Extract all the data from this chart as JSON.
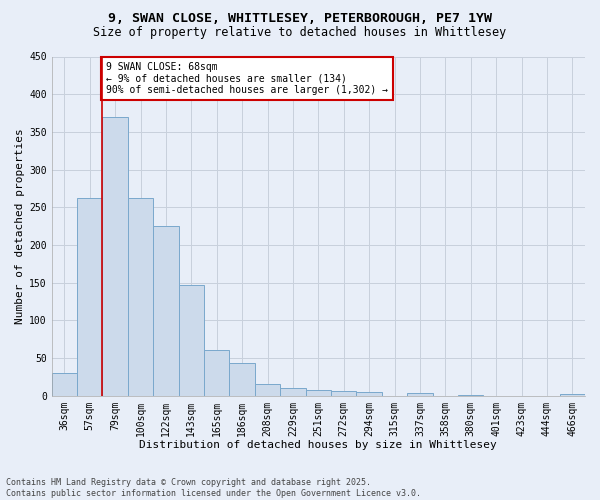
{
  "title_line1": "9, SWAN CLOSE, WHITTLESEY, PETERBOROUGH, PE7 1YW",
  "title_line2": "Size of property relative to detached houses in Whittlesey",
  "xlabel": "Distribution of detached houses by size in Whittlesey",
  "ylabel": "Number of detached properties",
  "bin_labels": [
    "36sqm",
    "57sqm",
    "79sqm",
    "100sqm",
    "122sqm",
    "143sqm",
    "165sqm",
    "186sqm",
    "208sqm",
    "229sqm",
    "251sqm",
    "272sqm",
    "294sqm",
    "315sqm",
    "337sqm",
    "358sqm",
    "380sqm",
    "401sqm",
    "423sqm",
    "444sqm",
    "466sqm"
  ],
  "bar_values": [
    30,
    262,
    370,
    262,
    225,
    147,
    60,
    44,
    15,
    10,
    8,
    6,
    5,
    0,
    4,
    0,
    1,
    0,
    0,
    0,
    2
  ],
  "bar_color": "#ccdaeb",
  "bar_edge_color": "#7aa8cc",
  "grid_color": "#c8d0dc",
  "background_color": "#e8eef8",
  "red_line_x": 1.5,
  "annotation_text": "9 SWAN CLOSE: 68sqm\n← 9% of detached houses are smaller (134)\n90% of semi-detached houses are larger (1,302) →",
  "annotation_box_color": "#ffffff",
  "annotation_box_edge_color": "#cc0000",
  "ylim": [
    0,
    450
  ],
  "yticks": [
    0,
    50,
    100,
    150,
    200,
    250,
    300,
    350,
    400,
    450
  ],
  "footnote": "Contains HM Land Registry data © Crown copyright and database right 2025.\nContains public sector information licensed under the Open Government Licence v3.0.",
  "title_fontsize": 9.5,
  "subtitle_fontsize": 8.5,
  "axis_label_fontsize": 8,
  "tick_fontsize": 7,
  "annot_fontsize": 7
}
